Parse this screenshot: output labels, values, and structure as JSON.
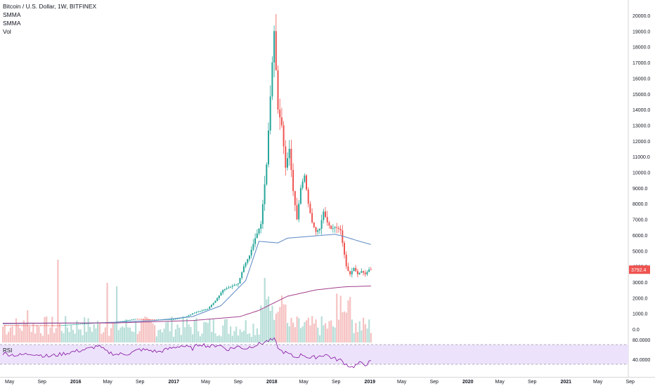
{
  "legend": {
    "symbol": "Bitcoin / U.S. Dollar, 1W, BITFINEX",
    "study1": "SMMA",
    "study2": "SMMA",
    "study3": "Vol"
  },
  "colors": {
    "up": "#26a69a",
    "down": "#ef5350",
    "vol_up": "#b7ded8",
    "vol_down": "#f6c2c2",
    "smma_fast": "#5b86c3",
    "smma_slow": "#a33f8c",
    "rsi_line": "#8e24aa",
    "rsi_band": "#ede2fb",
    "price_tag": "#ef5350",
    "axis_text": "#131722",
    "grid_border": "#d6d6d6"
  },
  "price_tag": "3792.4",
  "rsi_panel": {
    "label": "RSI",
    "upper": 70,
    "lower": 30,
    "ticks": [
      "80.0000",
      "40.0000"
    ]
  },
  "chart_data": {
    "type": "candlestick",
    "y_ticks": [
      "0.0",
      "1000.0",
      "2000.0",
      "3000.0",
      "4000.0",
      "5000.0",
      "6000.0",
      "7000.0",
      "8000.0",
      "9000.0",
      "10000.0",
      "11000.0",
      "12000.0",
      "13000.0",
      "14000.0",
      "15000.0",
      "16000.0",
      "17000.0",
      "18000.0",
      "19000.0",
      "20000.0"
    ],
    "x_ticks": [
      "May",
      "Sep",
      "2016",
      "May",
      "Sep",
      "2017",
      "May",
      "Sep",
      "2018",
      "May",
      "Sep",
      "2019",
      "May",
      "Sep",
      "2020",
      "May",
      "Sep",
      "2021",
      "May",
      "Sep"
    ],
    "ylim": [
      0,
      20000
    ],
    "close_anchors": [
      [
        0,
        250
      ],
      [
        30,
        240
      ],
      [
        50,
        410
      ],
      [
        58,
        400
      ],
      [
        70,
        650
      ],
      [
        80,
        600
      ],
      [
        90,
        620
      ],
      [
        96,
        770
      ],
      [
        100,
        1000
      ],
      [
        108,
        1300
      ],
      [
        112,
        1800
      ],
      [
        116,
        2500
      ],
      [
        120,
        2700
      ],
      [
        124,
        2900
      ],
      [
        127,
        4000
      ],
      [
        130,
        4700
      ],
      [
        133,
        5800
      ],
      [
        136,
        6700
      ],
      [
        139,
        10500
      ],
      [
        142,
        17000
      ],
      [
        143,
        19000
      ],
      [
        145,
        14000
      ],
      [
        147,
        13000
      ],
      [
        149,
        10300
      ],
      [
        151,
        11500
      ],
      [
        153,
        8800
      ],
      [
        155,
        7000
      ],
      [
        157,
        9000
      ],
      [
        159,
        9800
      ],
      [
        161,
        8000
      ],
      [
        163,
        6800
      ],
      [
        165,
        6200
      ],
      [
        167,
        6400
      ],
      [
        169,
        7500
      ],
      [
        171,
        6800
      ],
      [
        173,
        6400
      ],
      [
        175,
        6500
      ],
      [
        177,
        6400
      ],
      [
        178,
        6300
      ],
      [
        179,
        5500
      ],
      [
        181,
        4000
      ],
      [
        182,
        3700
      ],
      [
        183,
        3500
      ],
      [
        185,
        3900
      ],
      [
        187,
        3500
      ],
      [
        189,
        3700
      ],
      [
        191,
        3500
      ],
      [
        193,
        3800
      ],
      [
        194,
        3792.4
      ]
    ],
    "smma_fast_anchors": [
      [
        0,
        350
      ],
      [
        50,
        400
      ],
      [
        80,
        550
      ],
      [
        100,
        800
      ],
      [
        115,
        1500
      ],
      [
        128,
        3100
      ],
      [
        135,
        5600
      ],
      [
        145,
        5500
      ],
      [
        150,
        5800
      ],
      [
        160,
        5900
      ],
      [
        175,
        6050
      ],
      [
        180,
        5900
      ],
      [
        188,
        5600
      ],
      [
        194,
        5400
      ]
    ],
    "smma_slow_anchors": [
      [
        0,
        380
      ],
      [
        60,
        400
      ],
      [
        100,
        550
      ],
      [
        125,
        800
      ],
      [
        135,
        1200
      ],
      [
        150,
        2100
      ],
      [
        165,
        2500
      ],
      [
        180,
        2700
      ],
      [
        194,
        2750
      ]
    ],
    "rsi_anchors": [
      [
        0,
        52
      ],
      [
        8,
        48
      ],
      [
        15,
        52
      ],
      [
        24,
        46
      ],
      [
        30,
        50
      ],
      [
        38,
        56
      ],
      [
        46,
        62
      ],
      [
        50,
        68
      ],
      [
        55,
        55
      ],
      [
        60,
        50
      ],
      [
        67,
        52
      ],
      [
        72,
        60
      ],
      [
        78,
        58
      ],
      [
        82,
        55
      ],
      [
        88,
        62
      ],
      [
        94,
        68
      ],
      [
        100,
        62
      ],
      [
        104,
        72
      ],
      [
        109,
        66
      ],
      [
        114,
        70
      ],
      [
        118,
        60
      ],
      [
        124,
        66
      ],
      [
        128,
        62
      ],
      [
        132,
        68
      ],
      [
        136,
        72
      ],
      [
        140,
        78
      ],
      [
        143,
        80
      ],
      [
        146,
        58
      ],
      [
        150,
        52
      ],
      [
        154,
        44
      ],
      [
        158,
        50
      ],
      [
        162,
        42
      ],
      [
        166,
        46
      ],
      [
        170,
        50
      ],
      [
        174,
        42
      ],
      [
        178,
        38
      ],
      [
        181,
        30
      ],
      [
        184,
        24
      ],
      [
        188,
        32
      ],
      [
        191,
        30
      ],
      [
        194,
        35
      ]
    ],
    "volume_notes": "relative volume bars, tallest spikes near early 2015, early 2016 and 2018"
  }
}
